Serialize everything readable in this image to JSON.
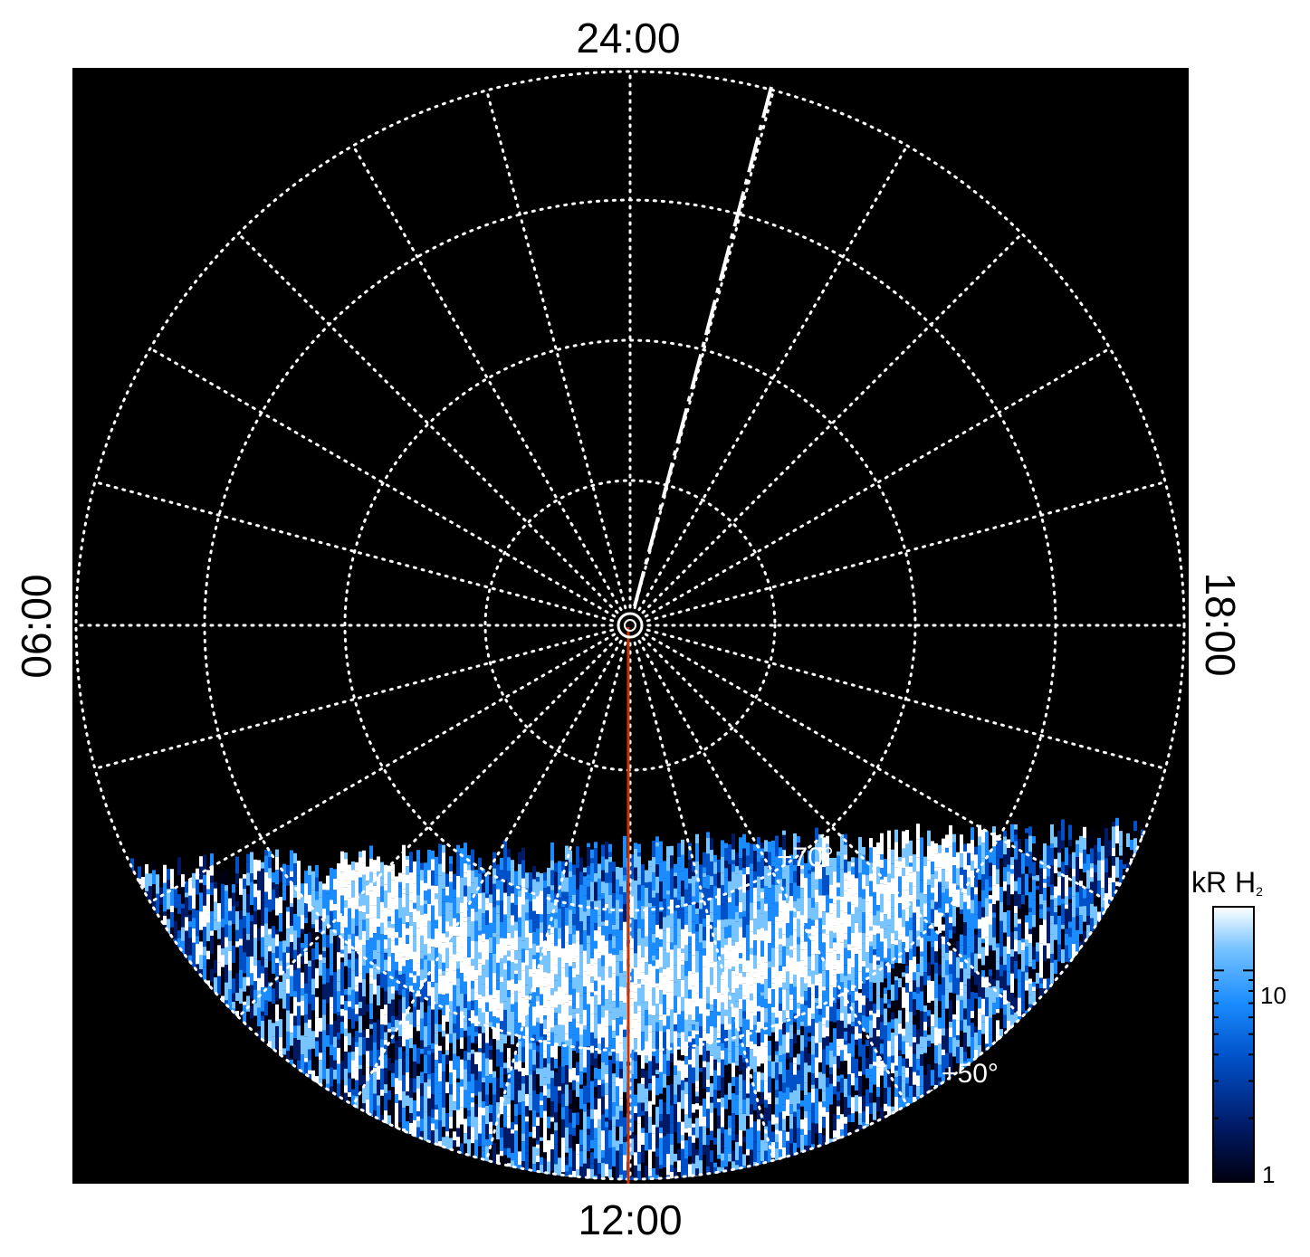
{
  "chart_data": {
    "type": "heatmap",
    "projection": "polar",
    "description_type": "auroral polar projection, local time vs latitude",
    "local_time_labels": {
      "top": "24:00",
      "left": "06:00",
      "right": "18:00",
      "bottom": "12:00"
    },
    "latitude_labels": [
      "+70°",
      "+50°"
    ],
    "latitude_grid": [
      80,
      70,
      60,
      50
    ],
    "longitude_grid_spokes": 24,
    "colorbar": {
      "title": "kR H",
      "title_subscript": "2",
      "scale": "log",
      "range": [
        1,
        20
      ],
      "tick_labels": [
        "1",
        "10"
      ],
      "tick_values": [
        1,
        10
      ],
      "colors": [
        "#000010",
        "#001a66",
        "#0050c8",
        "#1a8cff",
        "#78c4ff",
        "#ffffff"
      ]
    },
    "coverage": "dayside only (visible emission below ~+70° on the 12:00 side)",
    "emission_band": {
      "peak_latitude": 65,
      "peak_brightness_kR": 20,
      "sector": "dayside 08:00-16:00"
    },
    "overlays": {
      "noon_meridian_color": "#cc3300",
      "dashed_meridian_color": "#ffffff"
    },
    "grid": true,
    "background": "#000000"
  }
}
